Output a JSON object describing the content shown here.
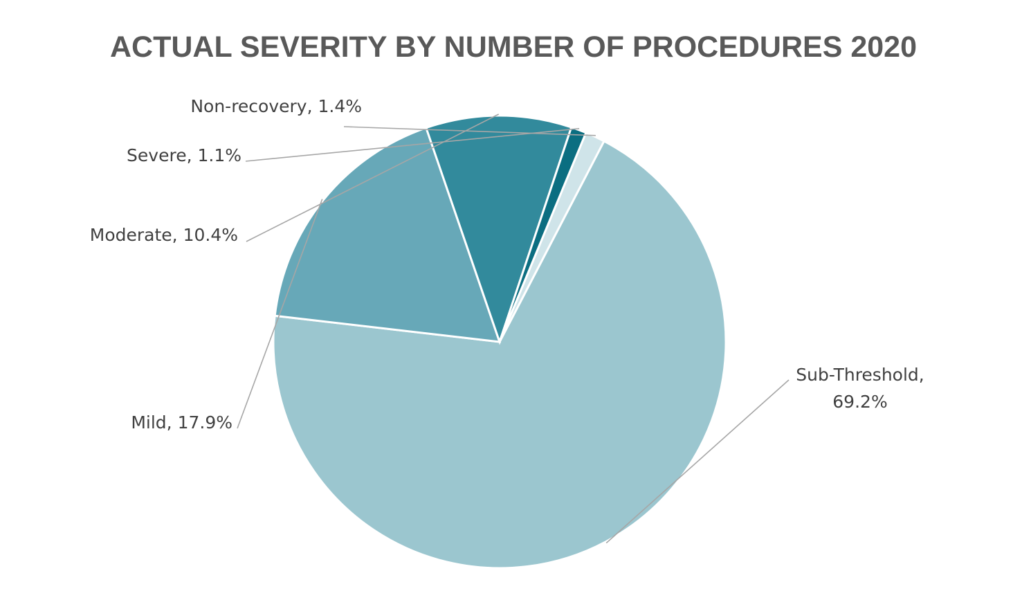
{
  "chart_data": {
    "type": "pie",
    "title": "ACTUAL SEVERITY BY NUMBER OF PROCEDURES 2020",
    "slices": [
      {
        "label": "Sub-Threshold",
        "value": 69.2,
        "display": "69.2%",
        "color": "#9bc6cf"
      },
      {
        "label": "Mild",
        "value": 17.9,
        "display": "17.9%",
        "color": "#67a8b8"
      },
      {
        "label": "Moderate",
        "value": 10.4,
        "display": "10.4%",
        "color": "#328a9c"
      },
      {
        "label": "Severe",
        "value": 1.1,
        "display": "1.1%",
        "color": "#0b6e81"
      },
      {
        "label": "Non-recovery",
        "value": 1.4,
        "display": "1.4%",
        "color": "#cfe4e9"
      }
    ],
    "data_label_format": "category, percentage",
    "legend": "none"
  }
}
